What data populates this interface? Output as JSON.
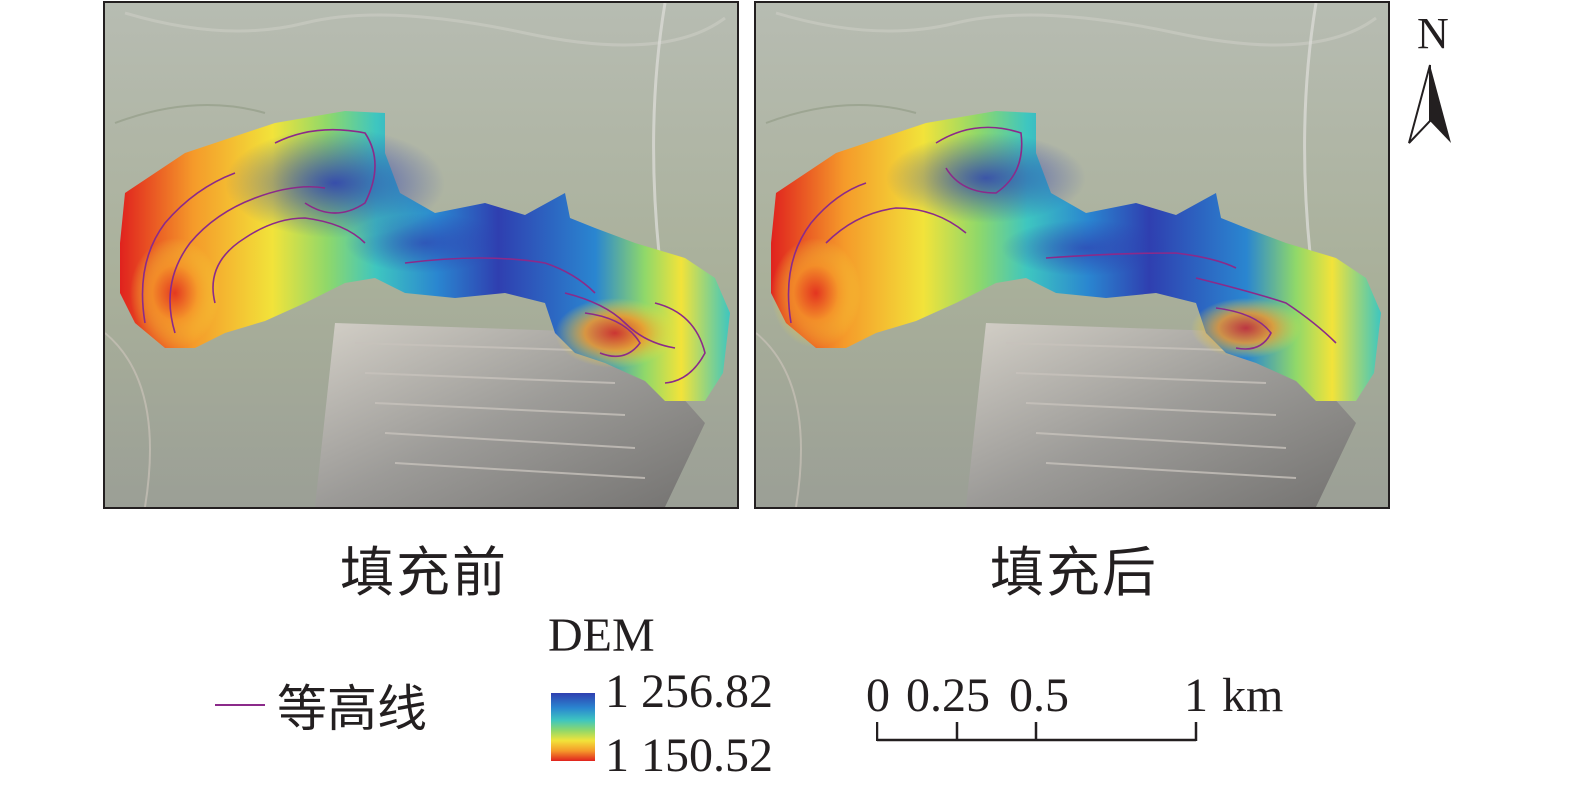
{
  "panels": {
    "before": {
      "caption": "填充前"
    },
    "after": {
      "caption": "填充后"
    }
  },
  "north_arrow": {
    "label": "N",
    "icon": "north-arrow-icon"
  },
  "legend": {
    "contour": {
      "label": "等高线",
      "color": "#8b2a8a"
    },
    "dem": {
      "title": "DEM",
      "max_label": "1 256.82",
      "min_label": "1 150.52",
      "ramp_colors": [
        "#2f3fb0",
        "#2a86d0",
        "#3ec6c0",
        "#8fd86a",
        "#f2e33a",
        "#f59a2a",
        "#e0221e"
      ]
    }
  },
  "scale_bar": {
    "ticks": [
      "0",
      "0.25",
      "0.5",
      "1"
    ],
    "unit": "km"
  },
  "colors": {
    "frame": "#231f20",
    "contour": "#8b2a8a"
  }
}
